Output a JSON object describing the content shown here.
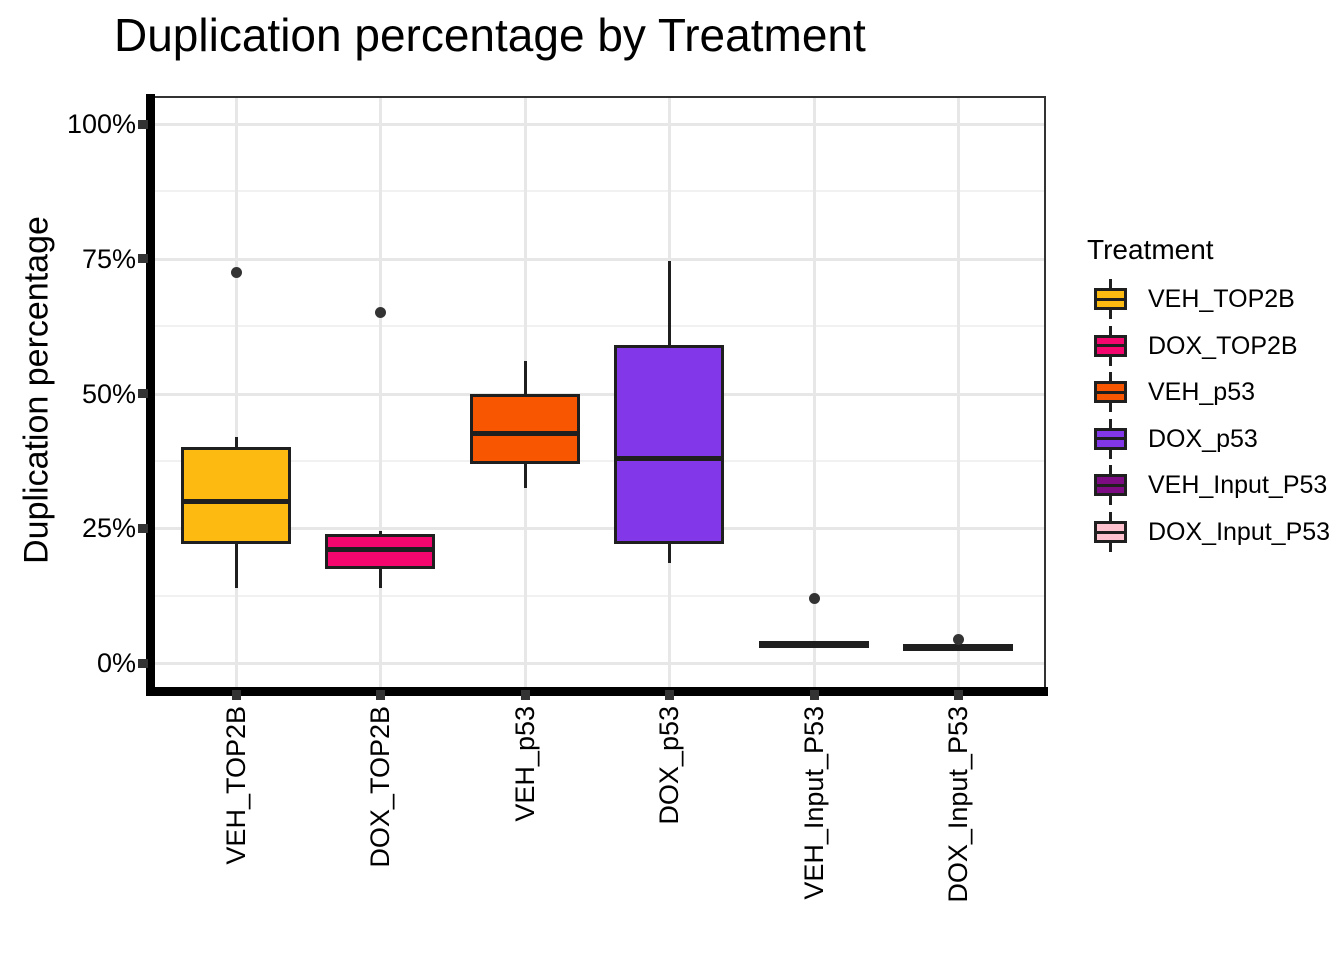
{
  "title": "Duplication percentage by Treatment",
  "y_axis": {
    "label": "Duplication percentage",
    "ticks": [
      "0%",
      "25%",
      "50%",
      "75%",
      "100%"
    ],
    "tick_values": [
      0,
      25,
      50,
      75,
      100
    ]
  },
  "x_axis": {
    "labels": [
      "VEH_TOP2B",
      "DOX_TOP2B",
      "VEH_p53",
      "DOX_p53",
      "VEH_Input_P53",
      "DOX_Input_P53"
    ]
  },
  "legend": {
    "title": "Treatment",
    "position": "right",
    "entries": [
      {
        "label": "VEH_TOP2B",
        "color": "#FDBA10"
      },
      {
        "label": "DOX_TOP2B",
        "color": "#F5066F"
      },
      {
        "label": "VEH_p53",
        "color": "#F95602"
      },
      {
        "label": "DOX_p53",
        "color": "#8238E8"
      },
      {
        "label": "VEH_Input_P53",
        "color": "#7C0B84"
      },
      {
        "label": "DOX_Input_P53",
        "color": "#FFC2CE"
      }
    ]
  },
  "chart_data": {
    "type": "boxplot",
    "title": "Duplication percentage by Treatment",
    "xlabel": "",
    "ylabel": "Duplication percentage",
    "ylim": [
      0,
      100
    ],
    "y_tick_format": "percent",
    "grid": "horizontal major+minor, vertical major per category",
    "legend_position": "right",
    "categories": [
      "VEH_TOP2B",
      "DOX_TOP2B",
      "VEH_p53",
      "DOX_p53",
      "VEH_Input_P53",
      "DOX_Input_P53"
    ],
    "series": [
      {
        "name": "VEH_TOP2B",
        "color": "#FDBA10",
        "whisker_low": 14,
        "q1": 22,
        "median": 30,
        "q3": 40,
        "whisker_high": 42,
        "outliers": [
          72.5
        ]
      },
      {
        "name": "DOX_TOP2B",
        "color": "#F5066F",
        "whisker_low": 14,
        "q1": 17.5,
        "median": 21,
        "q3": 24,
        "whisker_high": 24.5,
        "outliers": [
          65
        ]
      },
      {
        "name": "VEH_p53",
        "color": "#F95602",
        "whisker_low": 32.5,
        "q1": 37,
        "median": 42.5,
        "q3": 50,
        "whisker_high": 56,
        "outliers": []
      },
      {
        "name": "DOX_p53",
        "color": "#8238E8",
        "whisker_low": 18.5,
        "q1": 22,
        "median": 38,
        "q3": 59,
        "whisker_high": 74.5,
        "outliers": []
      },
      {
        "name": "VEH_Input_P53",
        "color": "#7C0B84",
        "whisker_low": 2.9,
        "q1": 3.2,
        "median": 3.6,
        "q3": 3.9,
        "whisker_high": 4.1,
        "outliers": [
          12
        ]
      },
      {
        "name": "DOX_Input_P53",
        "color": "#FFC2CE",
        "whisker_low": 2.5,
        "q1": 2.8,
        "median": 3.1,
        "q3": 3.4,
        "whisker_high": 3.6,
        "outliers": [
          4.3
        ]
      }
    ]
  },
  "style": {
    "box_stroke": "#1f1f1f",
    "grid_major": "#e7e7e7",
    "grid_minor": "#f1f1f1",
    "panel_border": "#333333",
    "tick_color": "#333333",
    "axis_line": "#000000",
    "background": "#ffffff"
  }
}
